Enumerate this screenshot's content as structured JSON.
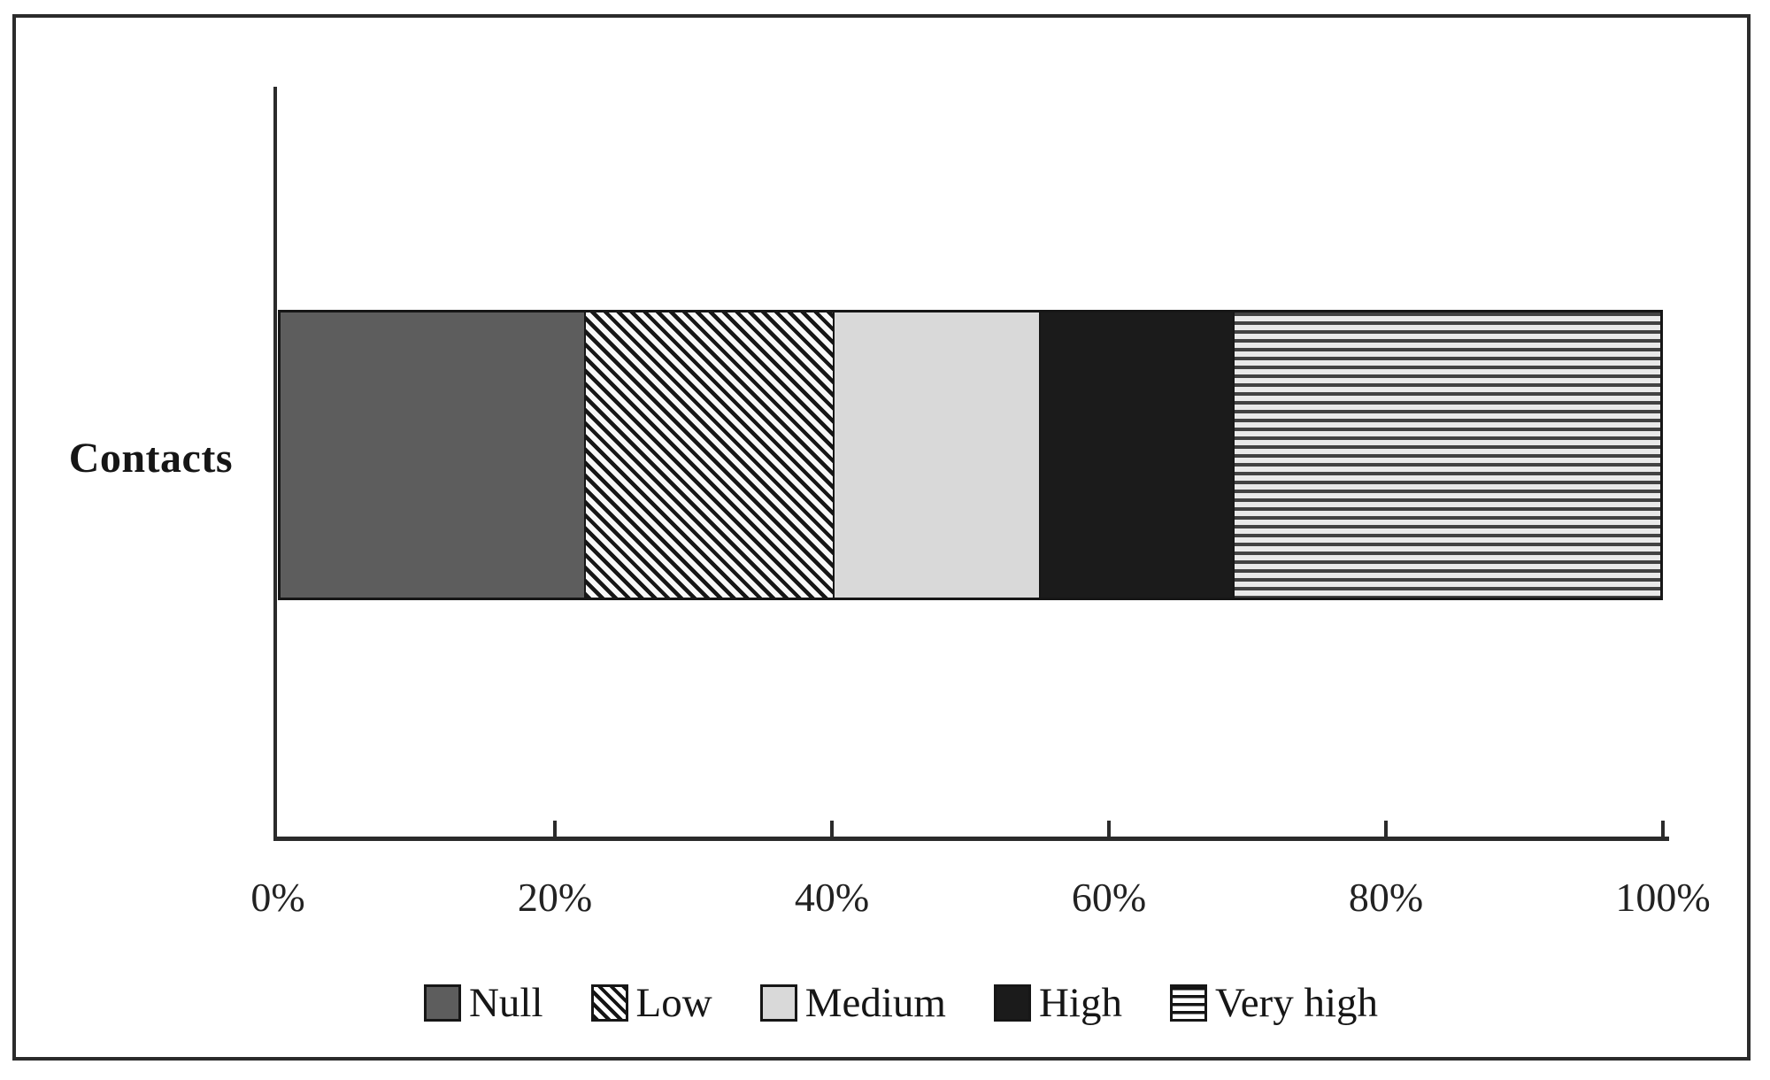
{
  "chart_data": {
    "type": "bar",
    "orientation": "horizontal_stacked",
    "title": "",
    "categories": [
      "Contacts"
    ],
    "series": [
      {
        "name": "Null",
        "values": [
          22
        ],
        "pattern": "solid-null",
        "color": "#5d5d5d"
      },
      {
        "name": "Low",
        "values": [
          18
        ],
        "pattern": "diagonal-hatch",
        "color": "#141414"
      },
      {
        "name": "Medium",
        "values": [
          15
        ],
        "pattern": "solid-medium",
        "color": "#d9d9d9"
      },
      {
        "name": "High",
        "values": [
          14
        ],
        "pattern": "solid-high",
        "color": "#1b1b1b"
      },
      {
        "name": "Very high",
        "values": [
          31
        ],
        "pattern": "horizontal-lines",
        "color": "#424242"
      }
    ],
    "x_ticks": {
      "labels": [
        "0%",
        "20%",
        "40%",
        "60%",
        "80%",
        "100%"
      ],
      "values": [
        0,
        20,
        40,
        60,
        80,
        100
      ]
    },
    "xlim": [
      0,
      100
    ],
    "unit": "%",
    "grid": false,
    "legend_position": "bottom",
    "axis_color": "#2b2b2b",
    "frame_border_color": "#2b2b2b"
  }
}
